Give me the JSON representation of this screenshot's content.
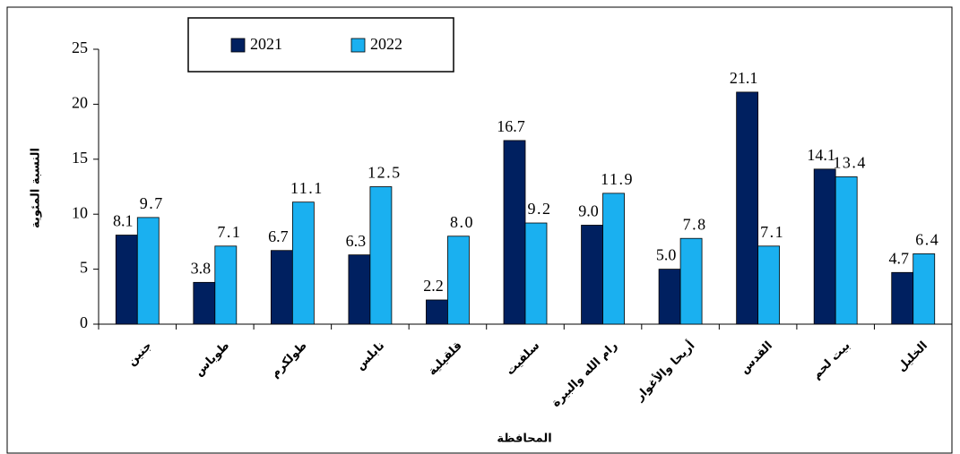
{
  "chart_data": {
    "type": "bar",
    "y_label": "النسبة المئوية",
    "x_label": "المحافظة",
    "categories": [
      "جنين",
      "طوباس",
      "طولكرم",
      "نابلس",
      "قلقيلية",
      "سلفيت",
      "رام الله والبيرة",
      "أريحا والأغوار",
      "القدس",
      "بيت لحم",
      "الخليل"
    ],
    "series": [
      {
        "name": "2021",
        "color": "#002060",
        "label_color": "#000000",
        "values": [
          8.1,
          3.8,
          6.7,
          6.3,
          2.2,
          16.7,
          9.0,
          5.0,
          21.1,
          14.1,
          4.7
        ],
        "value_labels": [
          "8.1",
          "3.8",
          "6.7",
          "6.3",
          "2.2",
          "16.7",
          "9.0",
          "5.0",
          "21.1",
          "14.1",
          "4.7"
        ]
      },
      {
        "name": "2022",
        "color": "#1ab0f0",
        "label_color": "#c00000",
        "values": [
          9.7,
          7.1,
          11.1,
          12.5,
          8.0,
          9.2,
          11.9,
          7.8,
          7.1,
          13.4,
          6.4
        ],
        "value_labels": [
          "9.7",
          "7.1",
          "11.1",
          "12.5",
          "8.0",
          "9.2",
          "11.9",
          "7.8",
          "7.1",
          "13.4",
          "6.4"
        ]
      }
    ],
    "ylim": [
      0,
      25
    ],
    "yticks": [
      0,
      5,
      10,
      15,
      20,
      25
    ],
    "grid": false
  }
}
